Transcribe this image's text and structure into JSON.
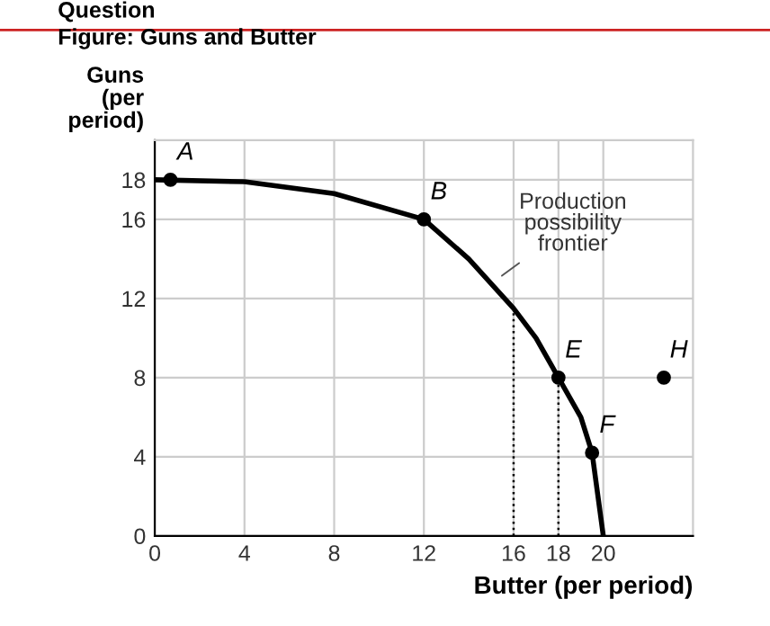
{
  "chart_data": {
    "type": "line",
    "title": "Figure: Guns and Butter",
    "xlabel": "Butter (per period)",
    "ylabel": "Guns\n(per\nperiod)",
    "series": [
      {
        "color": "#000000",
        "x": [
          0,
          4,
          8,
          12,
          14,
          16,
          17,
          18,
          19,
          19.5,
          20
        ],
        "values": [
          18,
          17.9,
          17.3,
          16,
          14,
          11.5,
          10,
          8,
          6,
          4.2,
          0
        ]
      },
      {
        "type": "line",
        "color": "#000000",
        "line_style": "dotted",
        "x": [
          16,
          16
        ],
        "values": [
          0,
          11.5
        ]
      },
      {
        "type": "line",
        "color": "#000000",
        "line_style": "dotted",
        "x": [
          18,
          18
        ],
        "values": [
          0,
          8
        ]
      },
      {
        "type": "scatter",
        "color": "#000000",
        "marker": "circle",
        "x": [
          0.7,
          12,
          18,
          19.5,
          22.7
        ],
        "values": [
          18,
          16,
          8,
          4.2,
          8
        ]
      }
    ],
    "annotations": [
      "Question",
      {
        "text": "Production\npossibility\nfrontier",
        "x": 15.3,
        "y": 13
      },
      {
        "text": "A",
        "x": 0.7,
        "y": 18
      },
      {
        "text": "B",
        "x": 12,
        "y": 16
      },
      {
        "text": "E",
        "x": 18,
        "y": 8
      },
      {
        "text": "F",
        "x": 19.5,
        "y": 4.2
      },
      {
        "text": "H",
        "x": 22.7,
        "y": 8
      }
    ],
    "xlim": [
      0,
      24
    ],
    "xticks": [
      0,
      4,
      8,
      12,
      16,
      18,
      20
    ],
    "ylim": [
      0,
      20
    ],
    "yticks": [
      0,
      4,
      8,
      12,
      16,
      18
    ],
    "grid": true
  }
}
